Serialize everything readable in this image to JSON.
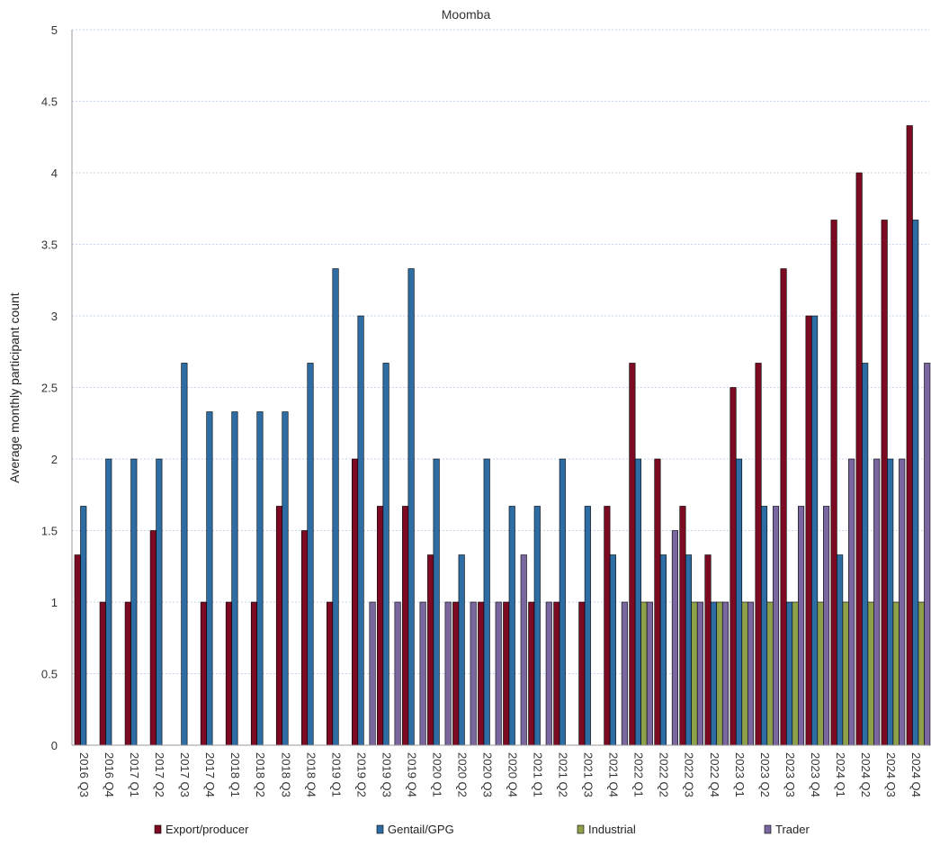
{
  "chart_data": {
    "type": "bar",
    "title": "Moomba",
    "xlabel": "",
    "ylabel": "Average monthly participant count",
    "ylim": [
      0,
      5
    ],
    "yticks": [
      0,
      0.5,
      1,
      1.5,
      2,
      2.5,
      3,
      3.5,
      4,
      4.5,
      5
    ],
    "ytick_labels": [
      "0",
      "0.5",
      "1",
      "1.5",
      "2",
      "2.5",
      "3",
      "3.5",
      "4",
      "4.5",
      "5"
    ],
    "grid": true,
    "legend_position": "bottom",
    "categories": [
      "2016 Q3",
      "2016 Q4",
      "2017 Q1",
      "2017 Q2",
      "2017 Q3",
      "2017 Q4",
      "2018 Q1",
      "2018 Q2",
      "2018 Q3",
      "2018 Q4",
      "2019 Q1",
      "2019 Q2",
      "2019 Q3",
      "2019 Q4",
      "2020 Q1",
      "2020 Q2",
      "2020 Q3",
      "2020 Q4",
      "2021 Q1",
      "2021 Q2",
      "2021 Q3",
      "2021 Q4",
      "2022 Q1",
      "2022 Q2",
      "2022 Q3",
      "2022 Q4",
      "2023 Q1",
      "2023 Q2",
      "2023 Q3",
      "2023 Q4",
      "2024 Q1",
      "2024 Q2",
      "2024 Q3",
      "2024 Q4"
    ],
    "series": [
      {
        "name": "Export/producer",
        "color": "#7b0a22",
        "values": [
          1.33,
          1,
          1,
          1.5,
          null,
          1,
          1,
          1,
          1.67,
          1.5,
          1,
          2,
          1.67,
          1.67,
          1.33,
          1,
          1,
          1,
          1,
          1,
          1,
          1.67,
          2.67,
          2,
          1.67,
          1.33,
          2.5,
          2.67,
          3.33,
          3,
          3.67,
          4,
          3.67,
          4.33
        ]
      },
      {
        "name": "Gentail/GPG",
        "color": "#2e6ca4",
        "values": [
          1.67,
          2,
          2,
          2,
          2.67,
          2.33,
          2.33,
          2.33,
          2.33,
          2.67,
          3.33,
          3,
          2.67,
          3.33,
          2,
          1.33,
          2,
          1.67,
          1.67,
          2,
          1.67,
          1.33,
          2,
          1.33,
          1.33,
          1,
          2,
          1.67,
          1,
          3,
          1.33,
          2.67,
          2,
          3.67
        ]
      },
      {
        "name": "Industrial",
        "color": "#8ea04a",
        "values": [
          null,
          null,
          null,
          null,
          null,
          null,
          null,
          null,
          null,
          null,
          null,
          null,
          null,
          null,
          null,
          null,
          null,
          null,
          null,
          null,
          null,
          null,
          1,
          null,
          1,
          1,
          1,
          1,
          1,
          1,
          1,
          1,
          1,
          1
        ]
      },
      {
        "name": "Trader",
        "color": "#7a67a0",
        "values": [
          null,
          null,
          null,
          null,
          null,
          null,
          null,
          null,
          null,
          null,
          null,
          1,
          1,
          1,
          1,
          1,
          1,
          1.33,
          1,
          null,
          null,
          1,
          1,
          1.5,
          1,
          1,
          1,
          1.67,
          1.67,
          1.67,
          2,
          2,
          2,
          2.67
        ]
      }
    ]
  }
}
